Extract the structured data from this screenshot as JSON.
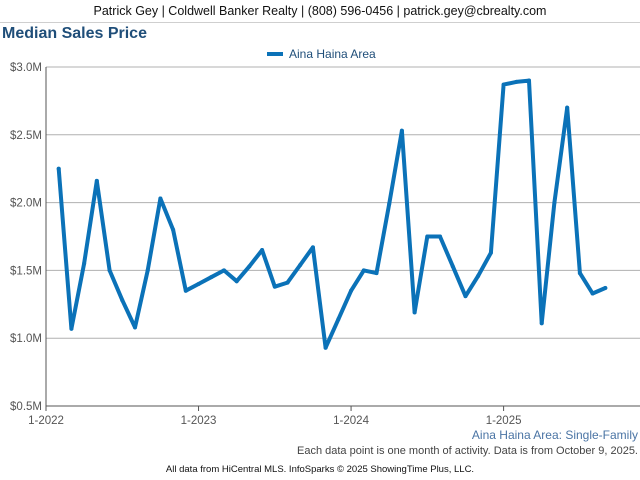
{
  "header": {
    "contact": "Patrick Gey | Coldwell Banker Realty | (808) 596-0456 | patrick.gey@cbrealty.com"
  },
  "footer": {
    "subtitle": "Aina Haina Area: Single-Family",
    "note": "Each data point is one month of activity. Data is from October 9, 2025.",
    "credit": "All data from HiCentral MLS. InfoSparks © 2025 ShowingTime Plus, LLC."
  },
  "colors": {
    "series": "#0b72b8",
    "grid": "#b0b0b0",
    "axis": "#555555",
    "title": "#1f4e79"
  },
  "chart_data": {
    "type": "line",
    "title": "Median Sales Price",
    "xlabel": "",
    "ylabel": "",
    "ylim": [
      500000,
      3000000
    ],
    "grid": true,
    "legend_position": "top-center",
    "y_ticks": [
      {
        "value": 500000,
        "label": "$0.5M"
      },
      {
        "value": 1000000,
        "label": "$1.0M"
      },
      {
        "value": 1500000,
        "label": "$1.5M"
      },
      {
        "value": 2000000,
        "label": "$2.0M"
      },
      {
        "value": 2500000,
        "label": "$2.5M"
      },
      {
        "value": 3000000,
        "label": "$3.0M"
      }
    ],
    "x_ticks": [
      {
        "value": "2022-01",
        "label": "1-2022"
      },
      {
        "value": "2023-01",
        "label": "1-2023"
      },
      {
        "value": "2024-01",
        "label": "1-2024"
      },
      {
        "value": "2025-01",
        "label": "1-2025"
      }
    ],
    "x_range": [
      "2022-01",
      "2025-10"
    ],
    "x": [
      "2022-02",
      "2022-03",
      "2022-04",
      "2022-05",
      "2022-06",
      "2022-07",
      "2022-08",
      "2022-09",
      "2022-10",
      "2022-11",
      "2022-12",
      "2023-01",
      "2023-02",
      "2023-03",
      "2023-04",
      "2023-05",
      "2023-06",
      "2023-07",
      "2023-08",
      "2023-09",
      "2023-10",
      "2023-11",
      "2023-12",
      "2024-01",
      "2024-02",
      "2024-03",
      "2024-04",
      "2024-05",
      "2024-06",
      "2024-07",
      "2024-08",
      "2024-09",
      "2024-10",
      "2024-11",
      "2024-12",
      "2025-01",
      "2025-02",
      "2025-03",
      "2025-04",
      "2025-05",
      "2025-06",
      "2025-07",
      "2025-08",
      "2025-09"
    ],
    "series": [
      {
        "name": "Aina Haina Area",
        "values": [
          2250000,
          1070000,
          1550000,
          2160000,
          1500000,
          1280000,
          1080000,
          1500000,
          2030000,
          1800000,
          1350000,
          1400000,
          1450000,
          1500000,
          1420000,
          1530000,
          1650000,
          1380000,
          1410000,
          1540000,
          1670000,
          930000,
          1140000,
          1350000,
          1500000,
          1480000,
          1990000,
          2530000,
          1190000,
          1750000,
          1750000,
          1530000,
          1310000,
          1460000,
          1630000,
          2870000,
          2890000,
          2900000,
          1110000,
          2000000,
          2700000,
          1480000,
          1330000,
          1370000
        ]
      }
    ]
  }
}
